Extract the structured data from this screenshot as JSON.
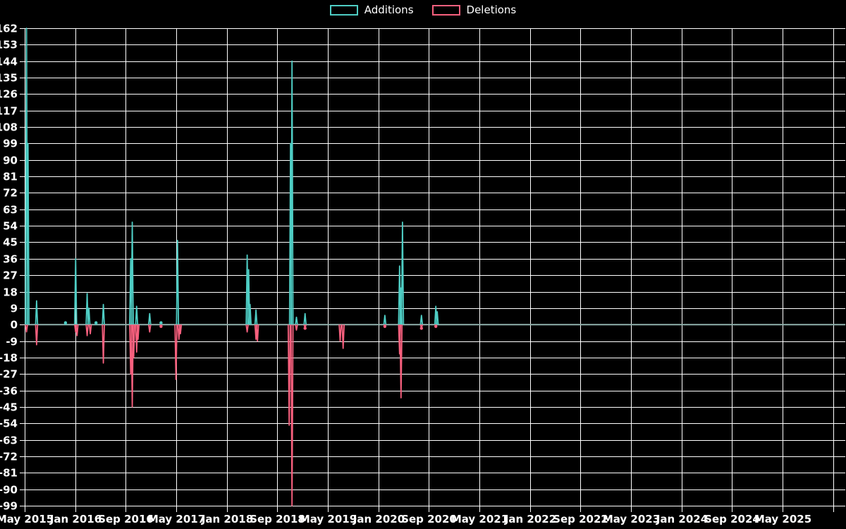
{
  "legend": {
    "items": [
      {
        "label": "Additions",
        "color": "#4ecdc4"
      },
      {
        "label": "Deletions",
        "color": "#f8607e"
      }
    ]
  },
  "chart_data": {
    "type": "line",
    "title": "",
    "description": "Weekly additions and deletions spike chart",
    "background": "#000000",
    "grid": {
      "show": true,
      "color": "#ffffff"
    },
    "baseline_color": "#8fb1ac",
    "text_color": "#ffffff",
    "x_axis": {
      "start_month": "2015-05",
      "tick_interval_months": 8,
      "tick_labels": [
        "May 2015",
        "Jan 2016",
        "Sep 2016",
        "May 2017",
        "Jan 2018",
        "Sep 2018",
        "May 2019",
        "Jan 2020",
        "Sep 2020",
        "May 2021",
        "Jan 2022",
        "Sep 2022",
        "May 2023",
        "Jan 2024",
        "Sep 2024",
        "May 2025"
      ]
    },
    "y_axis": {
      "min": -99,
      "max": 162,
      "tick_step": 9,
      "tick_labels": [
        162,
        153,
        144,
        135,
        126,
        117,
        108,
        99,
        90,
        81,
        72,
        63,
        54,
        45,
        36,
        27,
        18,
        9,
        0,
        -9,
        -18,
        -27,
        -36,
        -45,
        -54,
        -63,
        -72,
        -81,
        -90,
        -99
      ]
    },
    "series": [
      {
        "name": "Additions",
        "color": "#4ecdc4",
        "points": [
          [
            "2015-05-10",
            162
          ],
          [
            "2015-05-17",
            99
          ],
          [
            "2015-06-28",
            13
          ],
          [
            "2015-11-15",
            1
          ],
          [
            "2016-01-03",
            36
          ],
          [
            "2016-02-28",
            17
          ],
          [
            "2016-03-06",
            9
          ],
          [
            "2016-04-10",
            1
          ],
          [
            "2016-05-15",
            11
          ],
          [
            "2016-09-25",
            36
          ],
          [
            "2016-10-02",
            56
          ],
          [
            "2016-10-23",
            10
          ],
          [
            "2016-12-25",
            6
          ],
          [
            "2017-02-19",
            1
          ],
          [
            "2017-05-07",
            46
          ],
          [
            "2018-04-08",
            38
          ],
          [
            "2018-04-15",
            30
          ],
          [
            "2018-04-22",
            11
          ],
          [
            "2018-05-20",
            8
          ],
          [
            "2018-11-04",
            99
          ],
          [
            "2018-11-11",
            144
          ],
          [
            "2018-12-02",
            4
          ],
          [
            "2019-01-13",
            6
          ],
          [
            "2020-02-02",
            5
          ],
          [
            "2020-04-12",
            32
          ],
          [
            "2020-04-19",
            20
          ],
          [
            "2020-04-26",
            56
          ],
          [
            "2020-07-26",
            5
          ],
          [
            "2020-10-04",
            10
          ],
          [
            "2020-10-11",
            7
          ]
        ]
      },
      {
        "name": "Deletions",
        "color": "#f8607e",
        "points": [
          [
            "2015-05-10",
            -4
          ],
          [
            "2015-06-28",
            -11
          ],
          [
            "2016-01-03",
            -4
          ],
          [
            "2016-01-10",
            -6
          ],
          [
            "2016-02-28",
            -6
          ],
          [
            "2016-03-13",
            -5
          ],
          [
            "2016-05-15",
            -21
          ],
          [
            "2016-09-25",
            -27
          ],
          [
            "2016-10-02",
            -45
          ],
          [
            "2016-10-09",
            -18
          ],
          [
            "2016-10-23",
            -15
          ],
          [
            "2016-10-30",
            -8
          ],
          [
            "2016-12-25",
            -4
          ],
          [
            "2017-02-19",
            -1
          ],
          [
            "2017-04-30",
            -30
          ],
          [
            "2017-05-14",
            -8
          ],
          [
            "2017-05-21",
            -5
          ],
          [
            "2018-04-08",
            -4
          ],
          [
            "2018-05-20",
            -8
          ],
          [
            "2018-05-27",
            -9
          ],
          [
            "2018-10-28",
            -55
          ],
          [
            "2018-11-11",
            -99
          ],
          [
            "2018-12-02",
            -3
          ],
          [
            "2019-01-13",
            -2
          ],
          [
            "2019-06-30",
            -9
          ],
          [
            "2019-07-14",
            -13
          ],
          [
            "2020-02-02",
            -1
          ],
          [
            "2020-04-12",
            -16
          ],
          [
            "2020-04-19",
            -40
          ],
          [
            "2020-07-26",
            -2
          ],
          [
            "2020-10-04",
            -1
          ]
        ]
      }
    ]
  }
}
